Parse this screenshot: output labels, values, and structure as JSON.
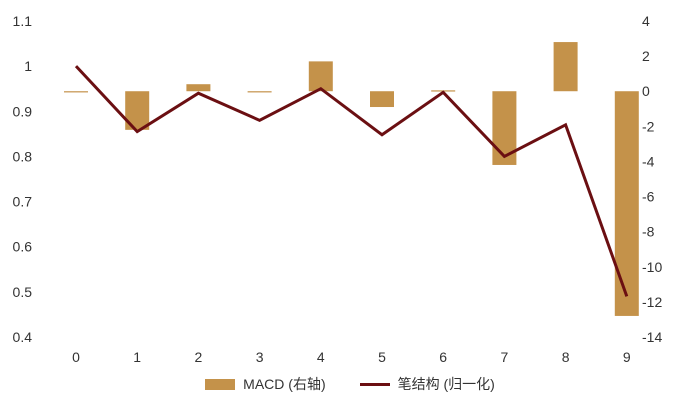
{
  "chart_data": {
    "type": "bar+line",
    "title": "",
    "x": [
      0,
      1,
      2,
      3,
      4,
      5,
      6,
      7,
      8,
      9
    ],
    "left_axis": {
      "range": [
        0.4,
        1.1
      ],
      "ticks": [
        "0.4",
        "0.5",
        "0.6",
        "0.7",
        "0.8",
        "0.9",
        "1",
        "1.1"
      ],
      "tick_values": [
        0.4,
        0.5,
        0.6,
        0.7,
        0.8,
        0.9,
        1.0,
        1.1
      ]
    },
    "right_axis": {
      "range": [
        -14,
        4
      ],
      "ticks": [
        "-14",
        "-12",
        "-10",
        "-8",
        "-6",
        "-4",
        "-2",
        "0",
        "2",
        "4"
      ],
      "tick_values": [
        -14,
        -12,
        -10,
        -8,
        -6,
        -4,
        -2,
        0,
        2,
        4
      ]
    },
    "x_ticks": [
      "0",
      "1",
      "2",
      "3",
      "4",
      "5",
      "6",
      "7",
      "8",
      "9"
    ],
    "grid": false,
    "legend_position": "bottom",
    "series": [
      {
        "name": "MACD (右轴)",
        "type": "bar",
        "axis": "right",
        "color": "#C4924A",
        "values": [
          0,
          -2.2,
          0.4,
          0,
          1.7,
          -0.9,
          0.05,
          -4.2,
          2.8,
          -12.8
        ]
      },
      {
        "name": "笔结构 (归一化)",
        "type": "line",
        "axis": "left",
        "color": "#6B0F12",
        "values": [
          1.0,
          0.855,
          0.94,
          0.88,
          0.95,
          0.848,
          0.942,
          0.8,
          0.87,
          0.49
        ]
      }
    ]
  }
}
